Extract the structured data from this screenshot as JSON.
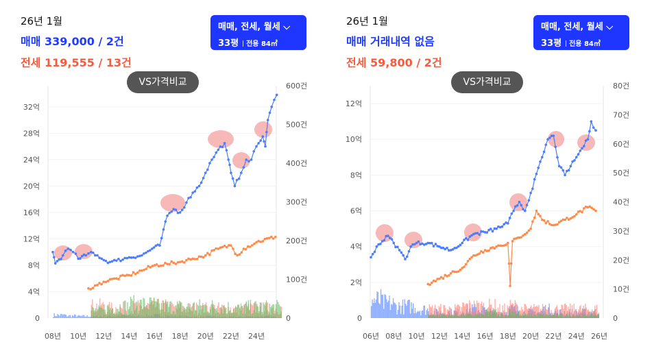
{
  "colors": {
    "sale": "#4a7dff",
    "jeonse": "#ff8a4a",
    "monthly": "#5cb85c",
    "accent": "#1e36ff",
    "highlight": "#f4a0a0"
  },
  "panels": [
    {
      "date": "26년 1월",
      "sale_text": "매매 339,000 / 2건",
      "jeonse_text": "전세 119,555 / 13건",
      "filter_types": "매매, 전세, 월세",
      "filter_size": "33평",
      "filter_area": "전용 84㎡",
      "vs_label": "VS가격비교",
      "chart_data": {
        "type": "line",
        "y_ticks": [
          "0",
          "4억",
          "8억",
          "12억",
          "16억",
          "20억",
          "24억",
          "28억",
          "32억"
        ],
        "y_tick_values": [
          0,
          4,
          8,
          12,
          16,
          20,
          24,
          28,
          32
        ],
        "y_max": 35.2,
        "y2_ticks": [
          "0",
          "100건",
          "200건",
          "300건",
          "400건",
          "500건",
          "600건"
        ],
        "y2_max": 600,
        "x_ticks": [
          "08년",
          "10년",
          "12년",
          "14년",
          "16년",
          "18년",
          "20년",
          "22년",
          "24년"
        ],
        "x_tick_values": [
          2008,
          2010,
          2012,
          2014,
          2016,
          2018,
          2020,
          2022,
          2024
        ],
        "x_range": [
          2007.6,
          2025.9
        ],
        "series": [
          {
            "name": "매매",
            "unit": "억",
            "points": [
              [
                2008.0,
                10
              ],
              [
                2008.2,
                8.3
              ],
              [
                2008.8,
                9.5
              ],
              [
                2009.2,
                10.5
              ],
              [
                2009.6,
                10
              ],
              [
                2010,
                9
              ],
              [
                2010.6,
                9.5
              ],
              [
                2011,
                10
              ],
              [
                2011.5,
                9.5
              ],
              [
                2012,
                8.8
              ],
              [
                2012.5,
                8.5
              ],
              [
                2013,
                8.7
              ],
              [
                2014,
                9.2
              ],
              [
                2015,
                9.5
              ],
              [
                2015.8,
                10.5
              ],
              [
                2016.4,
                11
              ],
              [
                2017,
                15.5
              ],
              [
                2017.5,
                16.5
              ],
              [
                2018,
                16
              ],
              [
                2018.5,
                17.5
              ],
              [
                2019,
                19
              ],
              [
                2019.5,
                20
              ],
              [
                2020,
                22
              ],
              [
                2020.5,
                24
              ],
              [
                2021,
                25.5
              ],
              [
                2021.5,
                26.5
              ],
              [
                2021.8,
                24
              ],
              [
                2022,
                22
              ],
              [
                2022.3,
                20
              ],
              [
                2022.8,
                22
              ],
              [
                2023.2,
                24
              ],
              [
                2023.6,
                24
              ],
              [
                2024,
                26
              ],
              [
                2024.5,
                27.5
              ],
              [
                2024.7,
                26
              ],
              [
                2024.9,
                30
              ],
              [
                2025.2,
                32
              ],
              [
                2025.6,
                33.8
              ]
            ]
          },
          {
            "name": "전세",
            "unit": "억",
            "points": [
              [
                2010.8,
                4.5
              ],
              [
                2011.5,
                5
              ],
              [
                2012,
                5.5
              ],
              [
                2013,
                6
              ],
              [
                2014,
                6.5
              ],
              [
                2015,
                7.2
              ],
              [
                2016,
                8
              ],
              [
                2017,
                8.2
              ],
              [
                2018,
                8.5
              ],
              [
                2019,
                9
              ],
              [
                2020,
                9.5
              ],
              [
                2021,
                10.5
              ],
              [
                2022,
                11
              ],
              [
                2022.5,
                9.5
              ],
              [
                2023,
                10.5
              ],
              [
                2024,
                11.5
              ],
              [
                2025.5,
                12.3
              ]
            ]
          }
        ],
        "volume_levels": {
          "start": 2008,
          "sale": [
            8,
            6,
            5,
            4,
            5,
            6,
            5,
            6,
            7,
            5,
            4,
            3,
            4,
            3,
            3,
            4,
            4,
            3
          ],
          "lease": [
            0,
            0,
            0,
            30,
            25,
            25,
            28,
            30,
            30,
            25,
            25,
            25,
            25,
            25,
            22,
            25,
            25,
            25
          ],
          "monthly": [
            0,
            0,
            0,
            20,
            25,
            30,
            35,
            35,
            30,
            30,
            28,
            30,
            30,
            28,
            25,
            28,
            28,
            28
          ]
        }
      }
    },
    {
      "date": "26년 1월",
      "sale_text": "매매 거래내역 없음",
      "jeonse_text": "전세 59,800 / 2건",
      "filter_types": "매매, 전세, 월세",
      "filter_size": "33평",
      "filter_area": "전용 84㎡",
      "vs_label": "VS가격비교",
      "chart_data": {
        "type": "line",
        "y_ticks": [
          "0",
          "2억",
          "4억",
          "6억",
          "8억",
          "10억",
          "12억"
        ],
        "y_tick_values": [
          0,
          2,
          4,
          6,
          8,
          10,
          12
        ],
        "y_max": 13.0,
        "y2_ticks": [
          "0",
          "10건",
          "20건",
          "30건",
          "40건",
          "50건",
          "60건",
          "70건",
          "80건"
        ],
        "y2_max": 80,
        "x_ticks": [
          "06년",
          "08년",
          "10년",
          "12년",
          "14년",
          "16년",
          "18년",
          "20년",
          "22년",
          "24년",
          "26년"
        ],
        "x_tick_values": [
          2006,
          2008,
          2010,
          2012,
          2014,
          2016,
          2018,
          2020,
          2022,
          2024,
          2026
        ],
        "x_range": [
          2006,
          2026
        ],
        "series": [
          {
            "name": "매매",
            "unit": "억",
            "points": [
              [
                2006,
                3.4
              ],
              [
                2006.5,
                4
              ],
              [
                2007,
                4.3
              ],
              [
                2007.5,
                4.6
              ],
              [
                2008,
                4.2
              ],
              [
                2008.5,
                3.8
              ],
              [
                2009,
                3.3
              ],
              [
                2009.5,
                4
              ],
              [
                2010,
                4.2
              ],
              [
                2011,
                4.2
              ],
              [
                2012,
                4
              ],
              [
                2013,
                3.8
              ],
              [
                2014,
                4.2
              ],
              [
                2015,
                4.7
              ],
              [
                2016,
                4.8
              ],
              [
                2017,
                5
              ],
              [
                2018,
                5.3
              ],
              [
                2018.5,
                6
              ],
              [
                2019,
                6.5
              ],
              [
                2019.5,
                6
              ],
              [
                2020,
                7
              ],
              [
                2021,
                9
              ],
              [
                2021.5,
                10
              ],
              [
                2022,
                10.2
              ],
              [
                2022.5,
                8.5
              ],
              [
                2023,
                8
              ],
              [
                2023.5,
                8.5
              ],
              [
                2024,
                9
              ],
              [
                2024.5,
                9.5
              ],
              [
                2025,
                10
              ],
              [
                2025.3,
                11
              ],
              [
                2025.7,
                10.5
              ]
            ]
          },
          {
            "name": "전세",
            "unit": "억",
            "points": [
              [
                2011,
                1.9
              ],
              [
                2012,
                2.2
              ],
              [
                2013,
                2.5
              ],
              [
                2014,
                2.8
              ],
              [
                2015,
                3.5
              ],
              [
                2016,
                3.8
              ],
              [
                2017,
                4
              ],
              [
                2018,
                4.2
              ],
              [
                2018.2,
                1.8
              ],
              [
                2018.4,
                4.3
              ],
              [
                2019,
                4.5
              ],
              [
                2020,
                5
              ],
              [
                2020.5,
                6
              ],
              [
                2021,
                5.5
              ],
              [
                2022,
                5.2
              ],
              [
                2023,
                5.5
              ],
              [
                2024,
                5.8
              ],
              [
                2025,
                6.2
              ],
              [
                2025.7,
                6
              ]
            ]
          }
        ],
        "volume_levels": {
          "start": 2006,
          "sale": [
            6,
            5,
            4,
            4,
            3,
            2,
            2,
            2,
            3,
            3,
            2,
            2,
            3,
            2,
            2,
            3,
            2,
            2,
            2,
            2
          ],
          "lease": [
            0,
            0,
            0,
            0,
            0,
            3,
            3,
            3,
            4,
            4,
            4,
            3,
            4,
            3,
            3,
            3,
            3,
            3,
            3,
            3
          ],
          "monthly": [
            0,
            0,
            0,
            0,
            0,
            1,
            1,
            1,
            1,
            1,
            2,
            1,
            2,
            1,
            1,
            1,
            1,
            1,
            1,
            1
          ]
        }
      }
    }
  ]
}
